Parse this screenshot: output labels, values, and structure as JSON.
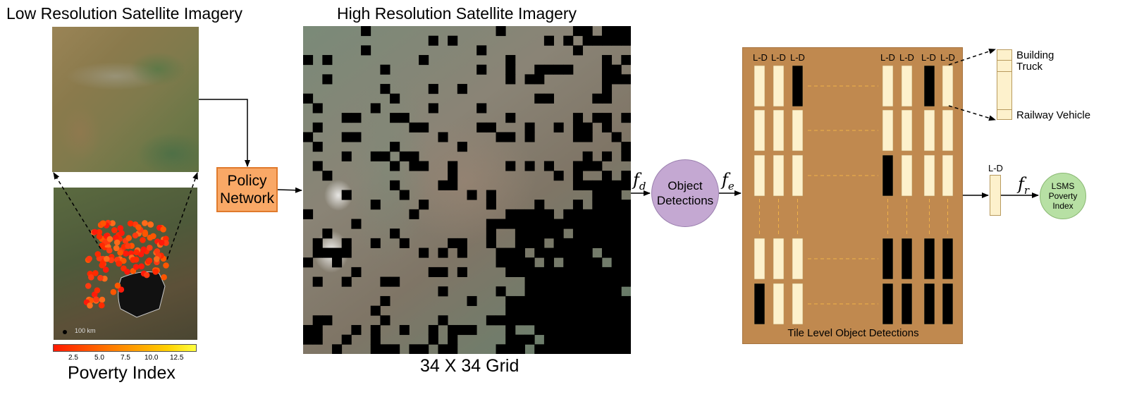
{
  "titles": {
    "low_res": "Low Resolution Satellite Imagery",
    "high_res": "High Resolution Satellite Imagery",
    "grid": "34 X 34 Grid"
  },
  "policy_network": {
    "line1": "Policy",
    "line2": "Network"
  },
  "object_detections": {
    "line1": "Object",
    "line2": "Detections"
  },
  "functions": {
    "fd": {
      "base": "f",
      "sub": "d"
    },
    "fe": {
      "base": "f",
      "sub": "e"
    },
    "fr": {
      "base": "f",
      "sub": "r"
    }
  },
  "tile_panel": {
    "caption": "Tile Level Object Detections",
    "ld_label": "L-D",
    "colors": {
      "panel": "#c0894f",
      "cell": "#fdf1cc",
      "black": "#000000",
      "dashed": "#f0b24a"
    }
  },
  "output_vector": {
    "label": "L-D"
  },
  "class_labels": {
    "building": "Building",
    "truck": "Truck",
    "railway": "Railway Vehicle"
  },
  "lsms": {
    "line1": "LSMS",
    "line2": "Poverty",
    "line3": "Index"
  },
  "poverty_map": {
    "scale_text": "100 km",
    "colorbar_label": "Poverty Index",
    "ticks": [
      "2.5",
      "5.0",
      "7.5",
      "10.0",
      "12.5"
    ],
    "colorbar_colors": [
      "#ff1a00",
      "#ff6a00",
      "#ffa500",
      "#ffd800",
      "#ffff40"
    ]
  }
}
